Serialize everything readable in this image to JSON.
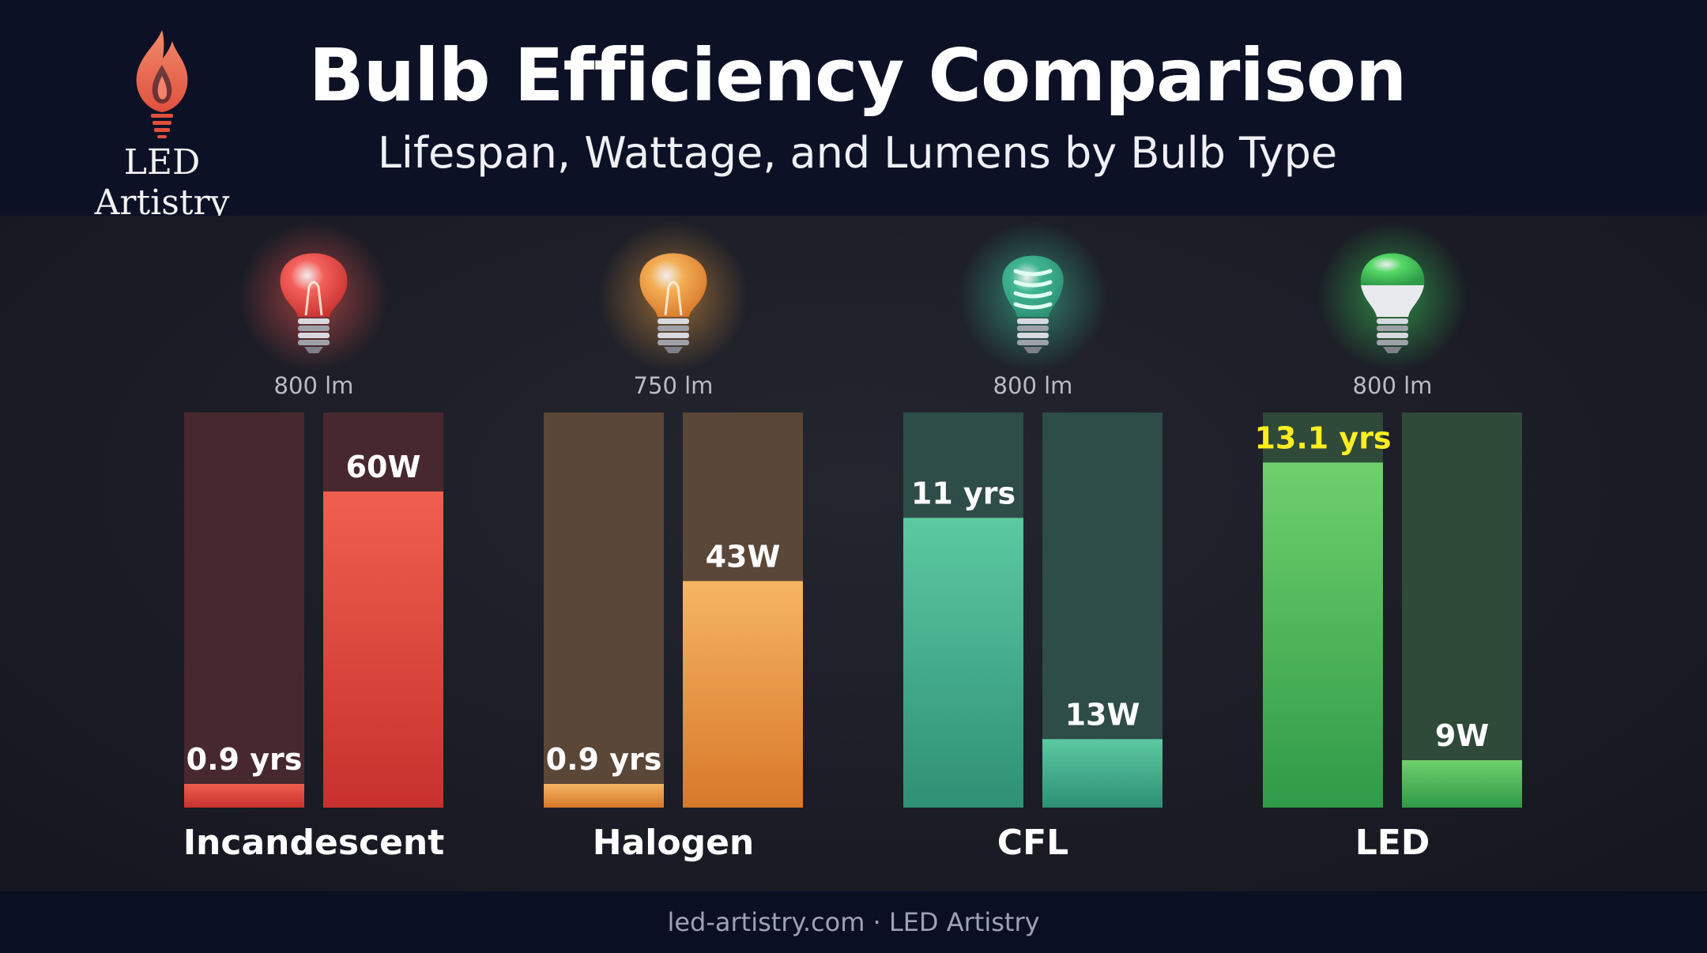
{
  "brand": {
    "name": "LED Artistry",
    "logo_icon": "flame-bulb-icon"
  },
  "chart_data": {
    "type": "bar",
    "title": "Bulb Efficiency Comparison",
    "subtitle": "Lifespan, Wattage, and Lumens by Bulb Type",
    "categories": [
      "Incandescent",
      "Halogen",
      "CFL",
      "LED"
    ],
    "series": [
      {
        "values": [
          0.9,
          0.9,
          11,
          13.1
        ],
        "labels": [
          "0.9 yrs",
          "0.9 yrs",
          "11 yrs",
          "13.1 yrs"
        ],
        "scale_max": 15
      },
      {
        "values": [
          60,
          43,
          13,
          9
        ],
        "labels": [
          "60W",
          "43W",
          "13W",
          "9W"
        ],
        "scale_max": 75
      }
    ],
    "lumens": [
      "800 lm",
      "750 lm",
      "800 lm",
      "800 lm"
    ],
    "highlight": {
      "series": 0,
      "category": 3,
      "color": "#ffee22"
    },
    "colors": {
      "Incandescent": {
        "bar_top": "#ef5f4e",
        "bar_bottom": "#c8312e",
        "track": "#48282f",
        "glow": "#ff5a55",
        "bulb": "#f4605b"
      },
      "Halogen": {
        "bar_top": "#f5b562",
        "bar_bottom": "#d8782a",
        "track": "#5b4737",
        "glow": "#f0a040",
        "bulb": "#f3ae55"
      },
      "CFL": {
        "bar_top": "#5cc9a2",
        "bar_bottom": "#2e9074",
        "track": "#2e4c48",
        "glow": "#3fd0a8",
        "bulb": "#3fb591"
      },
      "LED": {
        "bar_top": "#6fd06c",
        "bar_bottom": "#2f9a48",
        "track": "#2f4a39",
        "glow": "#3ee060",
        "bulb": "#55d866"
      }
    },
    "bulb_icons": [
      "incandescent-bulb-icon",
      "halogen-bulb-icon",
      "cfl-bulb-icon",
      "led-bulb-icon"
    ]
  },
  "footer": {
    "text": "led-artistry.com · LED Artistry"
  }
}
